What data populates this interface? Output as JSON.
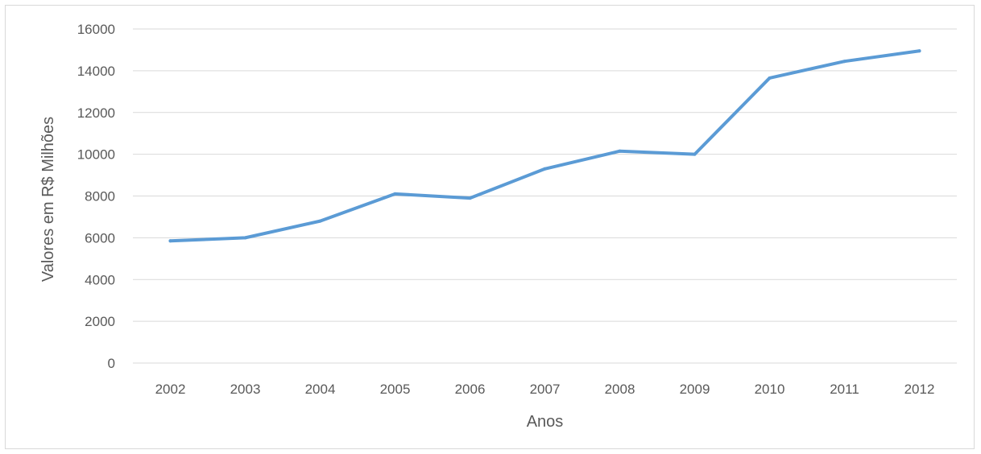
{
  "chart_data": {
    "type": "line",
    "title": "",
    "xlabel": "Anos",
    "ylabel": "Valores em R$ Milhões",
    "categories": [
      "2002",
      "2003",
      "2004",
      "2005",
      "2006",
      "2007",
      "2008",
      "2009",
      "2010",
      "2011",
      "2012"
    ],
    "series": [
      {
        "values": [
          5850,
          6000,
          6800,
          8100,
          7900,
          9300,
          10150,
          10000,
          13650,
          14450,
          14950
        ]
      }
    ],
    "ylim": [
      0,
      16000
    ],
    "yticks": [
      0,
      2000,
      4000,
      6000,
      8000,
      10000,
      12000,
      14000,
      16000
    ],
    "grid": true,
    "line_color": "#5b9bd5",
    "grid_color": "#d9d9d9"
  }
}
